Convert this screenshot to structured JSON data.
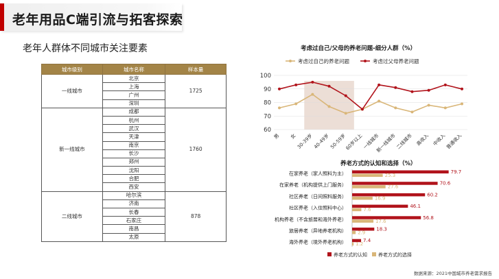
{
  "header": {
    "title": "老年用品C端引流与拓客探索"
  },
  "subtitle": "老年人群体不同城市关注要素",
  "city_table": {
    "headers": [
      "城市级别",
      "城市名称",
      "样本量"
    ],
    "groups": [
      {
        "tier": "一线城市",
        "cities": [
          "北京",
          "上海",
          "广州",
          "深圳"
        ],
        "sample": "1725"
      },
      {
        "tier": "新一线城市",
        "cities": [
          "成都",
          "杭州",
          "武汉",
          "天津",
          "南京",
          "长沙",
          "郑州",
          "沈阳",
          "合肥",
          "西安"
        ],
        "sample": "1760"
      },
      {
        "tier": "二线城市",
        "cities": [
          "哈尔滨",
          "济南",
          "长春",
          "石家庄",
          "南昌",
          "太原"
        ],
        "sample": "878"
      }
    ]
  },
  "colors": {
    "accent": "#c00000",
    "self": "#d9b678",
    "parents": "#b1131b",
    "table_header": "#a38447",
    "highlight": "#e9d8cf"
  },
  "footnote": "数据来源：2021中国城市养老需求报告",
  "chart_data": [
    {
      "type": "line",
      "title": "考虑过自己/父母的养老问题-细分人群（%）",
      "categories": [
        "男",
        "女",
        "30-39岁",
        "40-49岁",
        "50-59岁",
        "60岁以上",
        "一线城市",
        "新一线城市",
        "二线城市",
        "高收入",
        "中收入",
        "普通收入"
      ],
      "series": [
        {
          "name": "考虑过自己的养老问题",
          "values": [
            76,
            79,
            86,
            77,
            72,
            75,
            81,
            76,
            73,
            78,
            76,
            79
          ]
        },
        {
          "name": "考虑过父母养老问题",
          "values": [
            90,
            93,
            95,
            92,
            85,
            75,
            93,
            91,
            88,
            89,
            93,
            90
          ]
        }
      ],
      "ylim": [
        60,
        100
      ],
      "yticks": [
        60,
        70,
        80,
        90,
        100
      ],
      "highlight_categories": [
        "30-39岁",
        "40-49岁",
        "50-59岁"
      ],
      "legend": "top",
      "grid": true
    },
    {
      "type": "bar",
      "orientation": "horizontal",
      "title": "养老方式的认知和选择（%）",
      "categories": [
        "在家养老（家人照料为主）",
        "在家养老（机构提供上门服务）",
        "社区养老（日间照料服务）",
        "社区养老（入住照料中心）",
        "机构养老（不含旅居和海外养老）",
        "旅居养老（异地养老机构）",
        "海外养老（境外养老机构）"
      ],
      "series": [
        {
          "name": "养老方式的认知",
          "values": [
            79.7,
            70.6,
            60.2,
            46.1,
            56.8,
            18.3,
            7.4
          ]
        },
        {
          "name": "养老方式的选择",
          "values": [
            25.3,
            27.6,
            16.9,
            7.6,
            17.6,
            2.9,
            1.2
          ]
        }
      ],
      "xlim": [
        0,
        85
      ],
      "legend": "bottom"
    }
  ]
}
